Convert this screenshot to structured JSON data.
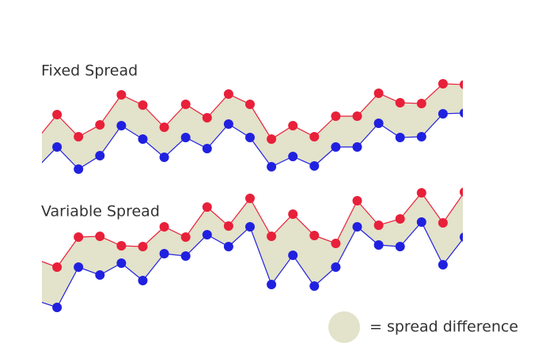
{
  "chart_data": [
    {
      "type": "line",
      "title": "Fixed Spread",
      "band_color": "#e3e2ca",
      "series": [
        {
          "color": "#e8203a",
          "values": [
            62,
            95,
            67,
            82,
            120,
            107,
            79,
            108,
            91,
            121,
            108,
            64,
            81,
            67,
            93,
            93,
            122,
            110,
            109,
            134,
            133
          ]
        },
        {
          "color": "#2020e0",
          "values": [
            26,
            54,
            26,
            43,
            81,
            64,
            41,
            66,
            52,
            83,
            66,
            29,
            42,
            30,
            54,
            54,
            84,
            66,
            67,
            96,
            97
          ]
        }
      ]
    },
    {
      "type": "line",
      "title": "Variable Spread",
      "band_color": "#e3e2ca",
      "series": [
        {
          "color": "#e8203a",
          "values": [
            92,
            82,
            120,
            121,
            109,
            108,
            133,
            120,
            158,
            134,
            169,
            121,
            149,
            122,
            112,
            166,
            135,
            143,
            176,
            138,
            177
          ]
        },
        {
          "color": "#2020e0",
          "values": [
            40,
            31,
            82,
            72,
            87,
            65,
            99,
            96,
            123,
            108,
            133,
            60,
            97,
            58,
            82,
            133,
            110,
            108,
            139,
            85,
            120
          ]
        }
      ]
    }
  ],
  "legend": {
    "label": "= spread difference",
    "color": "#e3e2ca"
  }
}
